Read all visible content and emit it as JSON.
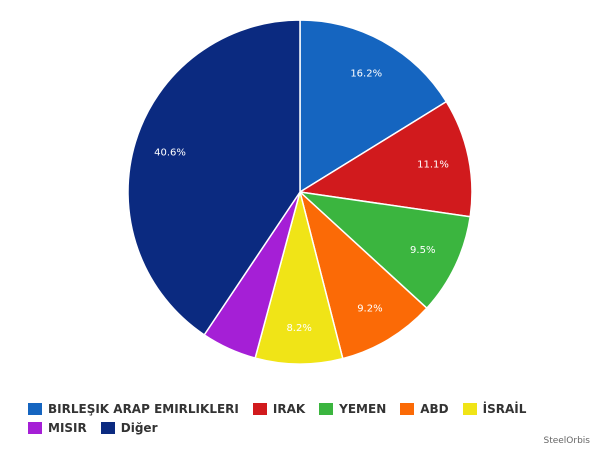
{
  "chart_data": {
    "type": "pie",
    "categories": [
      "BIRLEŞIK ARAP EMIRLIKLERI",
      "IRAK",
      "YEMEN",
      "ABD",
      "İSRAİL",
      "MISIR",
      "Diğer"
    ],
    "values": [
      16.2,
      11.1,
      9.5,
      9.2,
      8.2,
      5.2,
      40.6
    ],
    "value_labels": [
      "16.2%",
      "11.1%",
      "9.5%",
      "9.2%",
      "8.2%",
      null,
      "40.6%"
    ],
    "colors": [
      "#1565c0",
      "#d11a1d",
      "#3bb53f",
      "#fb6a06",
      "#f0e417",
      "#a51fd6",
      "#0b2a80"
    ],
    "legend": "bottom",
    "credit": "SteelOrbis"
  }
}
